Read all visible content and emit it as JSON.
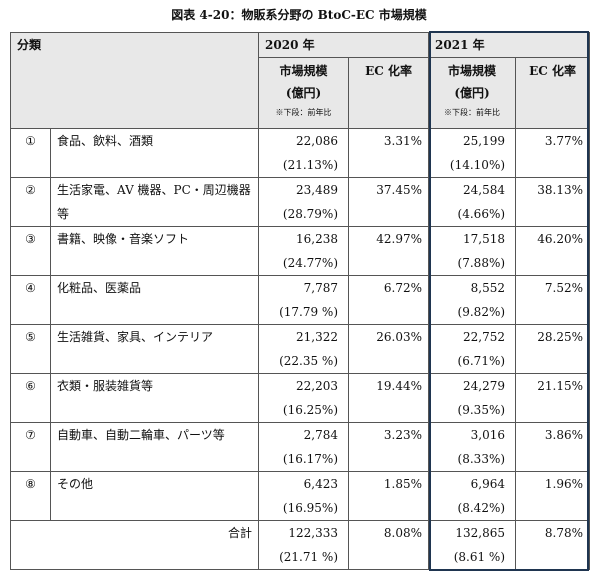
{
  "title": "図表 4-20：物販系分野の BtoC-EC 市場規模",
  "table": {
    "header": {
      "category": "分類",
      "years": [
        {
          "year": "2020 年",
          "market": "市場規模",
          "unit": "(億円)",
          "note": "※下段：前年比",
          "ec": "EC 化率"
        },
        {
          "year": "2021 年",
          "market": "市場規模",
          "unit": "(億円)",
          "note": "※下段：前年比",
          "ec": "EC 化率"
        }
      ]
    },
    "rows": [
      {
        "no": "①",
        "name": "食品、飲料、酒類",
        "cells": [
          [
            "22,086",
            "(21.13%)",
            "3.31%"
          ],
          [
            "25,199",
            "(14.10%)",
            "3.77%"
          ]
        ]
      },
      {
        "no": "②",
        "name": "生活家電、AV 機器、PC・周辺機器等",
        "cells": [
          [
            "23,489",
            "(28.79%)",
            "37.45%"
          ],
          [
            "24,584",
            "(4.66%)",
            "38.13%"
          ]
        ]
      },
      {
        "no": "③",
        "name": "書籍、映像・音楽ソフト",
        "cells": [
          [
            "16,238",
            "(24.77%)",
            "42.97%"
          ],
          [
            "17,518",
            "(7.88%)",
            "46.20%"
          ]
        ]
      },
      {
        "no": "④",
        "name": "化粧品、医薬品",
        "cells": [
          [
            "7,787",
            "(17.79 %)",
            "6.72%"
          ],
          [
            "8,552",
            "(9.82%)",
            "7.52%"
          ]
        ]
      },
      {
        "no": "⑤",
        "name": "生活雑貨、家具、インテリア",
        "cells": [
          [
            "21,322",
            "(22.35 %)",
            "26.03%"
          ],
          [
            "22,752",
            "(6.71%)",
            "28.25%"
          ]
        ]
      },
      {
        "no": "⑥",
        "name": "衣類・服装雑貨等",
        "cells": [
          [
            "22,203",
            "(16.25%)",
            "19.44%"
          ],
          [
            "24,279",
            "(9.35%)",
            "21.15%"
          ]
        ]
      },
      {
        "no": "⑦",
        "name": "自動車、自動二輪車、パーツ等",
        "cells": [
          [
            "2,784",
            "(16.17%)",
            "3.23%"
          ],
          [
            "3,016",
            "(8.33%)",
            "3.86%"
          ]
        ]
      },
      {
        "no": "⑧",
        "name": "その他",
        "cells": [
          [
            "6,423",
            "(16.95%)",
            "1.85%"
          ],
          [
            "6,964",
            "(8.42%)",
            "1.96%"
          ]
        ]
      }
    ],
    "total": {
      "name": "合計",
      "cells": [
        [
          "122,333",
          "(21.71 %)",
          "8.08%"
        ],
        [
          "132,865",
          "(8.61 %)",
          "8.78%"
        ]
      ]
    }
  }
}
